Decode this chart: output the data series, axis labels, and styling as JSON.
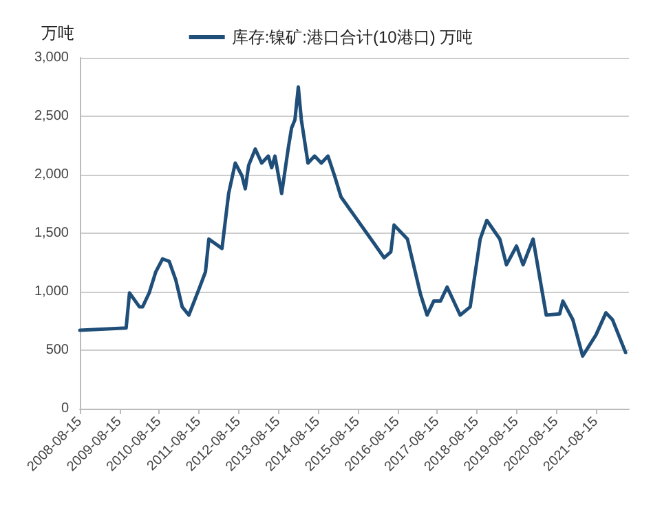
{
  "chart_data": {
    "type": "line",
    "ylabel": "万吨",
    "legend": "top",
    "grid": "y",
    "marker": "none",
    "line_style": "solid",
    "xlim": [
      "2008-08-15",
      "2022-06-15"
    ],
    "xticks": [
      "2008-08-15",
      "2009-08-15",
      "2010-08-15",
      "2011-08-15",
      "2012-08-15",
      "2013-08-15",
      "2014-08-15",
      "2015-08-15",
      "2016-08-15",
      "2017-08-15",
      "2018-08-15",
      "2019-08-15",
      "2020-08-15",
      "2021-08-15"
    ],
    "ylim": [
      0,
      3000
    ],
    "yticks": [
      0,
      500,
      {
        "value": 1000,
        "label": "1,000"
      },
      {
        "value": 1500,
        "label": "1,500"
      },
      {
        "value": 2000,
        "label": "2,000"
      },
      {
        "value": 2500,
        "label": "2,500"
      },
      {
        "value": 3000,
        "label": "3,000"
      }
    ],
    "x": [
      "2008-08-15",
      "2009-10",
      "2009-11",
      "2010-02",
      "2010-03",
      "2010-05",
      "2010-07",
      "2010-09",
      "2010-11",
      "2011-01",
      "2011-03",
      "2011-05",
      "2011-08",
      "2011-10",
      "2011-11",
      "2012-03",
      "2012-05",
      "2012-07",
      "2012-09",
      "2012-10",
      "2012-11",
      "2013-01",
      "2013-03",
      "2013-05",
      "2013-06",
      "2013-07",
      "2013-09",
      "2013-11",
      "2013-12",
      "2014-01",
      "2014-02",
      "2014-03",
      "2014-05",
      "2014-07",
      "2014-09",
      "2014-11",
      "2015-01",
      "2015-03",
      "2016-01",
      "2016-04",
      "2016-06",
      "2016-07",
      "2016-11",
      "2017-03",
      "2017-05",
      "2017-07",
      "2017-09",
      "2017-11",
      "2018-03",
      "2018-06",
      "2018-09",
      "2018-11",
      "2019-03",
      "2019-05",
      "2019-08",
      "2019-10",
      "2020-01",
      "2020-05",
      "2020-09",
      "2020-10",
      "2021-01",
      "2021-04",
      "2021-08",
      "2021-11",
      "2022-01",
      "2022-05"
    ],
    "series": [
      {
        "name": "库存:镍矿:港口合计(10港口) 万吨",
        "color": "#1f4e79",
        "values": [
          670,
          690,
          990,
          870,
          870,
          990,
          1170,
          1280,
          1260,
          1100,
          870,
          800,
          1020,
          1170,
          1450,
          1370,
          1840,
          2100,
          1990,
          1880,
          2080,
          2220,
          2100,
          2160,
          2060,
          2160,
          1840,
          2230,
          2400,
          2470,
          2750,
          2470,
          2100,
          2160,
          2100,
          2160,
          1990,
          1810,
          1410,
          1290,
          1340,
          1570,
          1450,
          980,
          800,
          920,
          920,
          1040,
          800,
          870,
          1450,
          1610,
          1450,
          1230,
          1390,
          1230,
          1450,
          800,
          810,
          920,
          760,
          450,
          630,
          820,
          760,
          480
        ]
      }
    ]
  }
}
